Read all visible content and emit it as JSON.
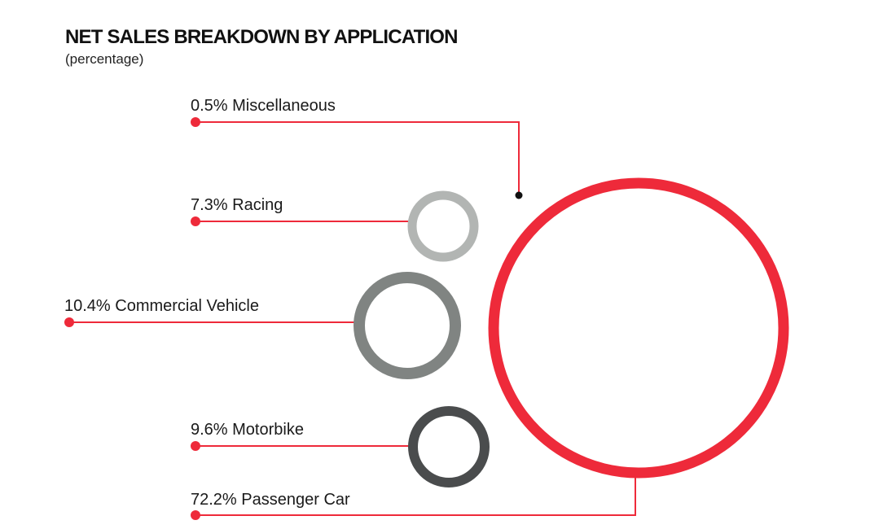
{
  "chart_data": {
    "type": "bubble",
    "title": "NET SALES BREAKDOWN BY APPLICATION",
    "subtitle": "(percentage)",
    "series": [
      {
        "name": "Miscellaneous",
        "value": 0.5,
        "label": "0.5% Miscellaneous",
        "color": "#111111"
      },
      {
        "name": "Racing",
        "value": 7.3,
        "label": "7.3% Racing",
        "color": "#b2b5b3"
      },
      {
        "name": "Commercial Vehicle",
        "value": 10.4,
        "label": "10.4% Commercial Vehicle",
        "color": "#808482"
      },
      {
        "name": "Motorbike",
        "value": 9.6,
        "label": "9.6% Motorbike",
        "color": "#4a4c4d"
      },
      {
        "name": "Passenger Car",
        "value": 72.2,
        "label": "72.2% Passenger Car",
        "color": "#ee2a3a"
      }
    ],
    "unit": "%"
  },
  "colors": {
    "accent": "#ee2a3a",
    "text": "#111111"
  }
}
